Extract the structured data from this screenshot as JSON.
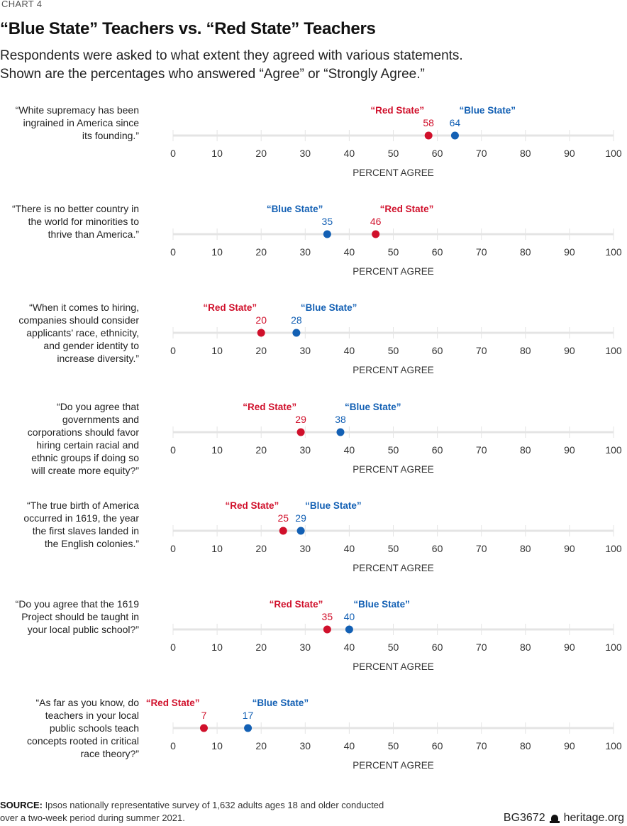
{
  "header": {
    "chart_number": "CHART 4",
    "title": "“Blue State” Teachers vs. “Red State” Teachers",
    "subtitle_line1": "Respondents were asked to what extent they agreed with various statements.",
    "subtitle_line2": "Shown are the percentages who answered “Agree” or “Strongly Agree.”"
  },
  "colors": {
    "red": "#d0102b",
    "blue": "#1360b4",
    "axis": "#e4e4e4",
    "tick_text": "#333333"
  },
  "footer": {
    "source_label": "SOURCE:",
    "source_text": " Ipsos nationally representative survey of 1,632 adults ages 18 and older conducted over a two-week period during summer 2021.",
    "report_id": "BG3672",
    "logo_icon": "liberty-bell-icon",
    "site": "heritage.org"
  },
  "chart_data": {
    "type": "scatter",
    "subtype": "dot-plot",
    "title": "“Blue State” Teachers vs. “Red State” Teachers",
    "xlabel": "PERCENT AGREE",
    "xlim": [
      0,
      100
    ],
    "xticks": [
      0,
      10,
      20,
      30,
      40,
      50,
      60,
      70,
      80,
      90,
      100
    ],
    "grid": false,
    "series_names": {
      "red": "“Red State”",
      "blue": "“Blue State”"
    },
    "categories": [
      "“White supremacy has been ingrained in America since its founding.”",
      "“There is no better country in the world for minorities to thrive than America.”",
      "“When it comes to hiring, companies should consider applicants’ race, ethnicity, and gender identity to increase diversity.”",
      "“Do you agree that governments and corporations should favor hiring certain racial and ethnic groups if doing so will create more equity?”",
      "“The true birth of America occurred in 1619, the year the first slaves landed in the English colonies.”",
      "“Do you agree that the 1619 Project should be taught in your local public school?”",
      "“As far as you know, do teachers in your local public schools teach concepts rooted in critical race theory?”"
    ],
    "series": [
      {
        "name": "“Red State”",
        "color": "#d0102b",
        "values": [
          58,
          46,
          20,
          29,
          25,
          35,
          7
        ]
      },
      {
        "name": "“Blue State”",
        "color": "#1360b4",
        "values": [
          64,
          35,
          28,
          38,
          29,
          40,
          17
        ]
      }
    ],
    "panels": [
      {
        "lines": [
          "“White supremacy has been",
          "ingrained in America since",
          "its founding.”"
        ]
      },
      {
        "lines": [
          "“There is no better country in",
          "the world for minorities to",
          "thrive than America.”"
        ]
      },
      {
        "lines": [
          "“When it comes to hiring,",
          "companies should consider",
          "applicants’ race, ethnicity,",
          "and gender identity to",
          "increase diversity.”"
        ]
      },
      {
        "lines": [
          "“Do you agree that",
          "governments and",
          "corporations should favor",
          "hiring certain racial and",
          "ethnic groups if doing so",
          "will create more equity?”"
        ]
      },
      {
        "lines": [
          "“The true birth of America",
          "occurred in 1619, the year",
          "the first slaves landed in",
          "the English colonies.”"
        ]
      },
      {
        "lines": [
          "“Do you agree that the 1619",
          "Project should be taught in",
          "your local public school?”"
        ]
      },
      {
        "lines": [
          "“As far as you know, do",
          "teachers in your local",
          "public schools teach",
          "concepts rooted in critical",
          "race theory?”"
        ]
      }
    ]
  }
}
